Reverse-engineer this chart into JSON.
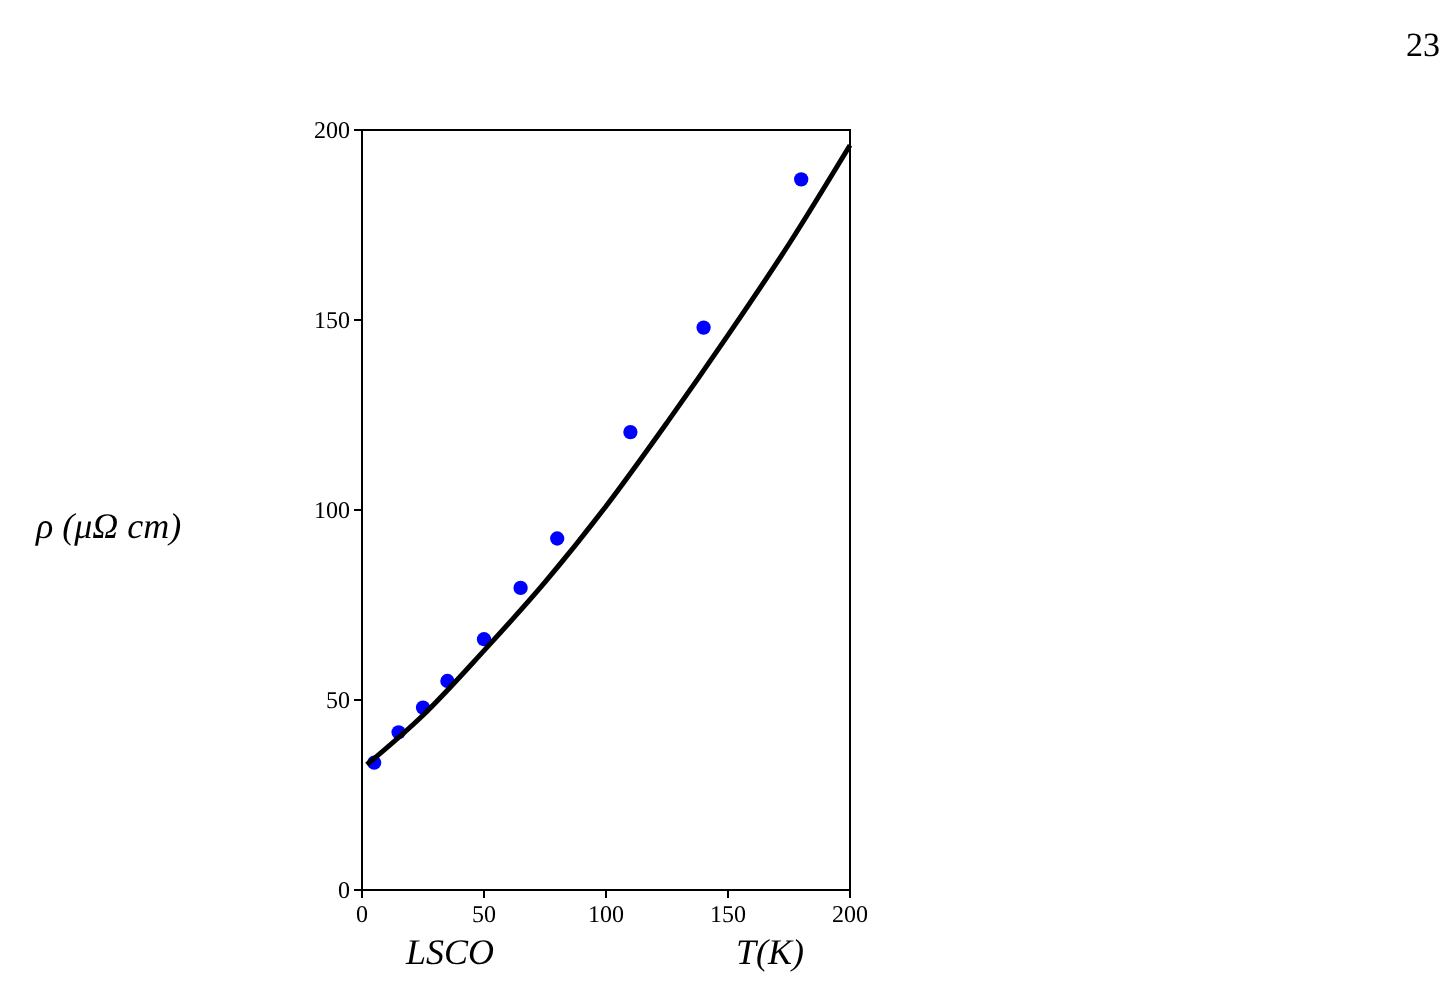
{
  "chart_data": {
    "type": "scatter",
    "xlabel": "T(K)",
    "ylabel": "ρ (μΩ cm)",
    "annotations": [
      "LSCO",
      "23"
    ],
    "xlim": [
      0,
      200
    ],
    "ylim": [
      0,
      200
    ],
    "xticks": [
      0,
      50,
      100,
      150,
      200
    ],
    "yticks": [
      0,
      50,
      100,
      150,
      200
    ],
    "grid": false,
    "series": [
      {
        "marker": "circle",
        "color": "#0000ff",
        "x": [
          5,
          15,
          25,
          35,
          50,
          65,
          80,
          110,
          140,
          180
        ],
        "values": [
          33.5,
          41.5,
          48,
          55,
          66,
          79.5,
          92.5,
          120.5,
          148,
          187
        ]
      },
      {
        "type": "line",
        "color": "#000000",
        "x": [
          2,
          25,
          50,
          75,
          100,
          125,
          150,
          175,
          200
        ],
        "values": [
          33,
          46,
          63,
          81,
          101,
          123,
          146,
          170,
          196
        ]
      }
    ]
  }
}
